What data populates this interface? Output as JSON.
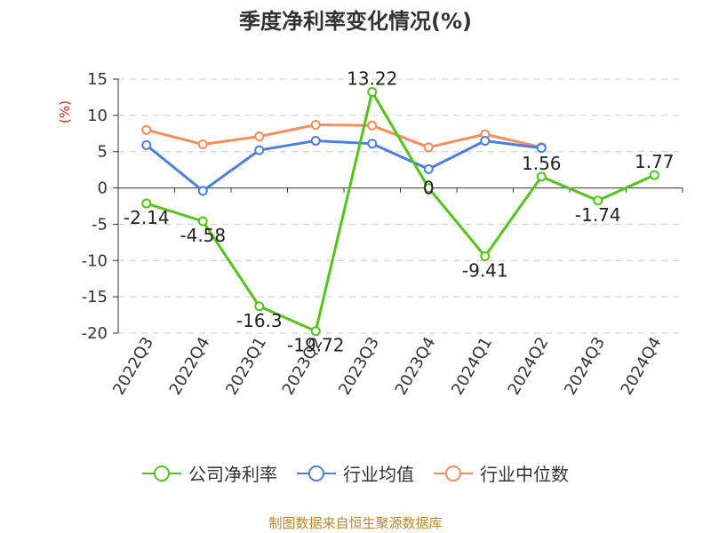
{
  "chart_data": {
    "type": "line",
    "title": "季度净利率变化情况(%)",
    "ylabel": "(%)",
    "xlabel": "",
    "categories": [
      "2022Q3",
      "2022Q4",
      "2023Q1",
      "2023Q2",
      "2023Q3",
      "2023Q4",
      "2024Q1",
      "2024Q2",
      "2024Q3",
      "2024Q4"
    ],
    "y_ticks": [
      "15",
      "10",
      "5",
      "0",
      "-5",
      "-10",
      "-15",
      "-20"
    ],
    "ylim": [
      -20,
      15
    ],
    "grid": true,
    "legend_position": "bottom",
    "series": [
      {
        "name": "公司净利率",
        "color": "#52c41a",
        "values": [
          -2.14,
          -4.58,
          -16.3,
          -19.72,
          13.22,
          0,
          -9.41,
          1.56,
          -1.74,
          1.77
        ],
        "labels": [
          "-2.14",
          "-4.58",
          "-16.3",
          "-19.72",
          "13.22",
          "0",
          "-9.41",
          "1.56",
          "-1.74",
          "1.77"
        ]
      },
      {
        "name": "行业均值",
        "color": "#4a7fdc",
        "values": [
          5.9,
          -0.4,
          5.2,
          6.5,
          6.1,
          2.6,
          6.5,
          5.5,
          null,
          null
        ]
      },
      {
        "name": "行业中位数",
        "color": "#f58d5b",
        "values": [
          8.0,
          6.0,
          7.1,
          8.7,
          8.6,
          5.6,
          7.4,
          5.6,
          null,
          null
        ]
      }
    ]
  },
  "footer": {
    "source": "制图数据来自恒生聚源数据库"
  }
}
